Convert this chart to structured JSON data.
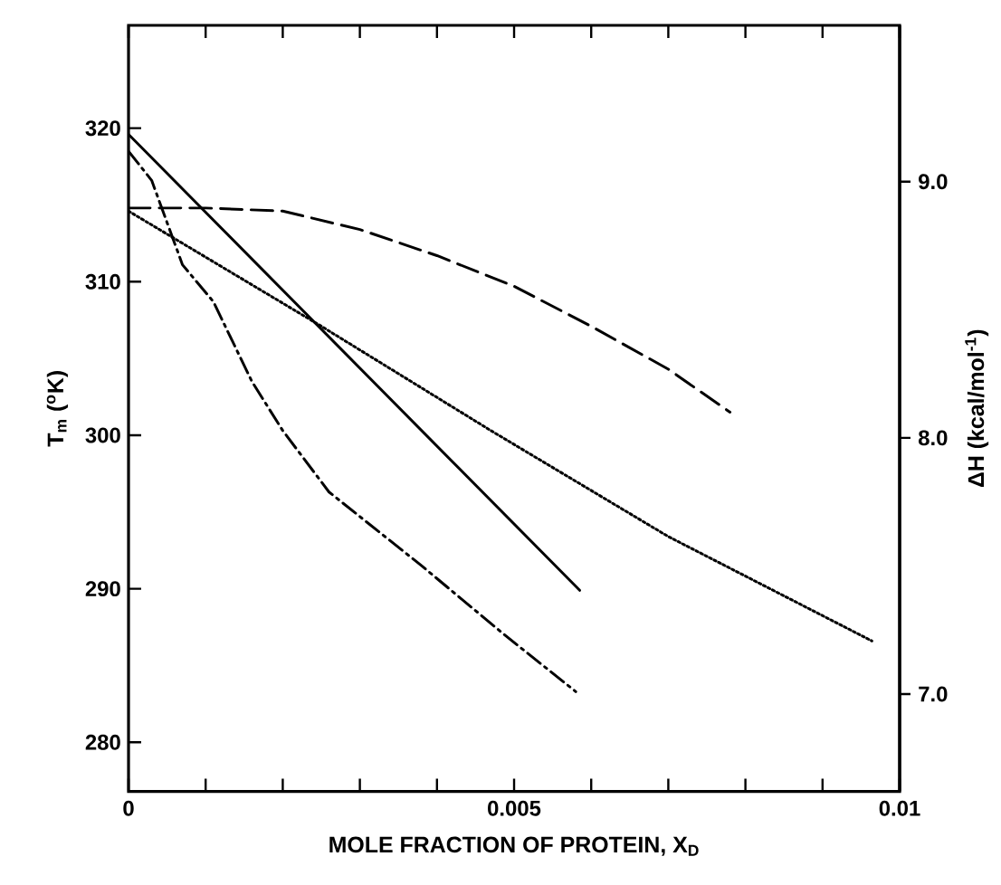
{
  "chart_data": {
    "type": "line",
    "xlabel": "MOLE FRACTION OF PROTEIN, X$_{D}$",
    "ylabel": "T$_{m}$ ($^{o}$K)",
    "y2label": "ΔH (kcal/mol$^{-1}$)",
    "xlim": [
      0,
      0.01
    ],
    "xticks": [
      0,
      {
        "value": 0.001,
        "label": null
      },
      {
        "value": 0.002,
        "label": null
      },
      {
        "value": 0.003,
        "label": null
      },
      {
        "value": 0.004,
        "label": null
      },
      0.005,
      {
        "value": 0.006,
        "label": null
      },
      {
        "value": 0.007,
        "label": null
      },
      {
        "value": 0.008,
        "label": null
      },
      {
        "value": 0.009,
        "label": null
      },
      0.01
    ],
    "ylim": [
      276.8,
      326.7
    ],
    "yticks": [
      280,
      290,
      300,
      310,
      320
    ],
    "y2lim": [
      6.62,
      9.61
    ],
    "y2ticks": [
      {
        "value": 7,
        "label": "7.0"
      },
      {
        "value": 8,
        "label": "8.0"
      },
      {
        "value": 9,
        "label": "9.0"
      }
    ],
    "grid": false,
    "marker": "none",
    "series": [
      {
        "color": "#000000",
        "line_style": "solid",
        "x": [
          0,
          0.00585
        ],
        "values": [
          319.6,
          289.9
        ]
      },
      {
        "color": "#000000",
        "line_style": "dashed",
        "x": [
          0,
          0.001,
          0.002,
          0.003,
          0.004,
          0.005,
          0.006,
          0.007,
          0.0078
        ],
        "values": [
          314.8,
          314.8,
          314.6,
          313.4,
          311.7,
          309.7,
          307.1,
          304.3,
          301.5
        ]
      },
      {
        "color": "#000000",
        "line_style": "dotted",
        "x": [
          0,
          0.0025,
          0.0047,
          0.007,
          0.00964
        ],
        "values": [
          314.6,
          307.1,
          300.3,
          293.4,
          286.6
        ]
      },
      {
        "color": "#000000",
        "line_style": "dashdot",
        "x": [
          0,
          0.0003,
          0.0007,
          0.0011,
          0.0016,
          0.002,
          0.0026,
          0.0038,
          0.0049,
          0.0058
        ],
        "values": [
          318.5,
          316.6,
          311.1,
          308.7,
          303.5,
          300.3,
          296.3,
          291.5,
          286.9,
          283.3
        ]
      }
    ]
  }
}
